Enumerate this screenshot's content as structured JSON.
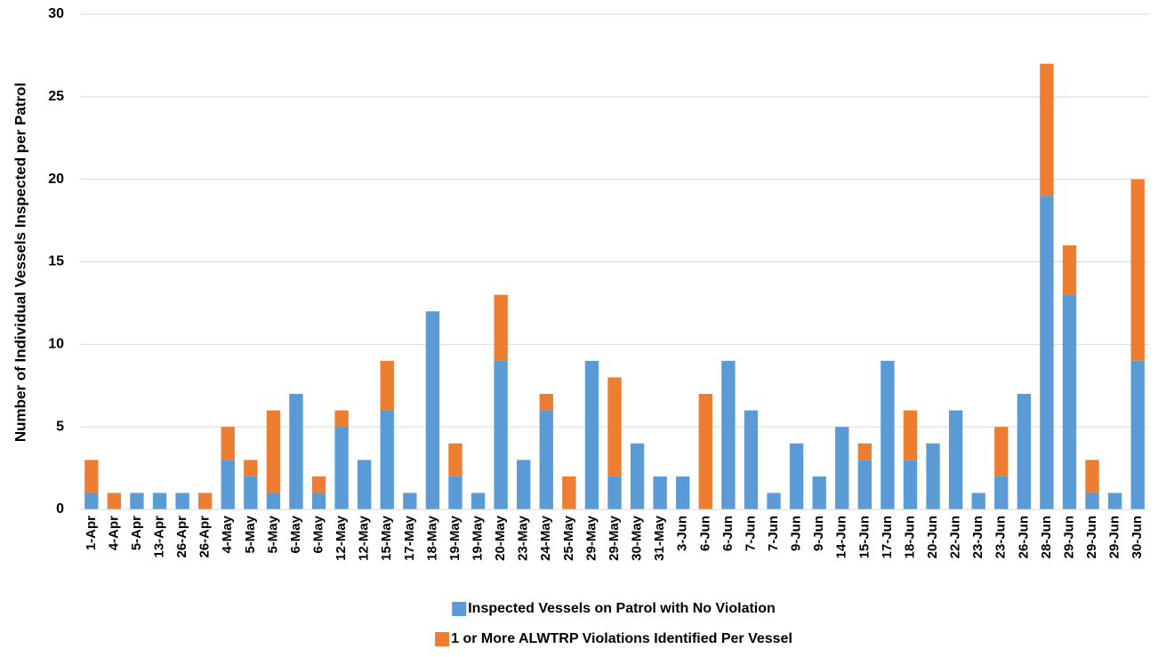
{
  "chart_data": {
    "type": "stacked-bar",
    "y_label": "Number of Individual Vessels Inspected per Patrol",
    "categories": [
      "1-Apr",
      "4-Apr",
      "5-Apr",
      "13-Apr",
      "26-Apr",
      "26-Apr",
      "4-May",
      "5-May",
      "5-May",
      "6-May",
      "6-May",
      "12-May",
      "12-May",
      "15-May",
      "17-May",
      "18-May",
      "19-May",
      "19-May",
      "20-May",
      "23-May",
      "24-May",
      "25-May",
      "29-May",
      "29-May",
      "30-May",
      "31-May",
      "3-Jun",
      "6-Jun",
      "6-Jun",
      "7-Jun",
      "7-Jun",
      "9-Jun",
      "9-Jun",
      "14-Jun",
      "15-Jun",
      "17-Jun",
      "18-Jun",
      "20-Jun",
      "22-Jun",
      "23-Jun",
      "23-Jun",
      "26-Jun",
      "28-Jun",
      "29-Jun",
      "29-Jun",
      "29-Jun",
      "30-Jun"
    ],
    "series": [
      {
        "name": "Inspected Vessels on Patrol with No Violation",
        "color": "#5b9bd5",
        "values": [
          1,
          0,
          1,
          1,
          1,
          0,
          3,
          2,
          1,
          7,
          1,
          5,
          3,
          6,
          1,
          12,
          2,
          1,
          9,
          3,
          6,
          0,
          9,
          2,
          4,
          2,
          2,
          0,
          9,
          6,
          1,
          4,
          2,
          5,
          3,
          9,
          3,
          4,
          6,
          1,
          2,
          7,
          19,
          13,
          1,
          1,
          9
        ]
      },
      {
        "name": "1 or More ALWTRP Violations Identified Per Vessel",
        "color": "#ed7d31",
        "values": [
          2,
          1,
          0,
          0,
          0,
          1,
          2,
          1,
          5,
          0,
          1,
          1,
          0,
          3,
          0,
          0,
          2,
          0,
          4,
          0,
          1,
          2,
          0,
          6,
          0,
          0,
          0,
          7,
          0,
          0,
          0,
          0,
          0,
          0,
          1,
          0,
          3,
          0,
          0,
          0,
          3,
          0,
          8,
          3,
          2,
          0,
          11
        ]
      }
    ],
    "ylim": [
      0,
      30
    ],
    "yticks": [
      0,
      5,
      10,
      15,
      20,
      25,
      30
    ],
    "grid": true,
    "legend": "bottom"
  }
}
